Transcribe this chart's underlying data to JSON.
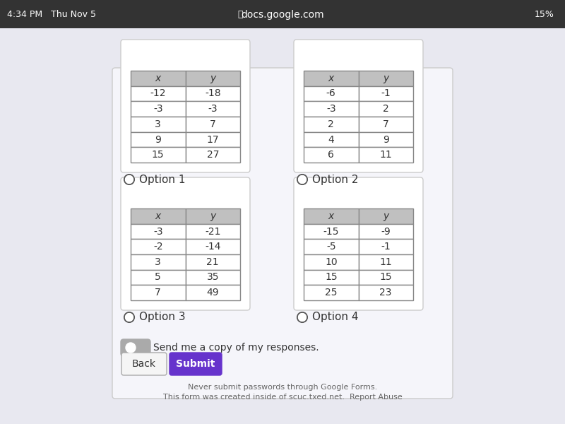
{
  "background_color": "#e8e8f0",
  "page_bg": "#f5f5fa",
  "card_bg": "#ffffff",
  "table_header_bg": "#c0c0c0",
  "table_border": "#888888",
  "option1": {
    "x_vals": [
      "-12",
      "-3",
      "3",
      "9",
      "15"
    ],
    "y_vals": [
      "-18",
      "-3",
      "7",
      "17",
      "27"
    ],
    "label": "Option 1"
  },
  "option2": {
    "x_vals": [
      "-6",
      "-3",
      "2",
      "4",
      "6"
    ],
    "y_vals": [
      "-1",
      "2",
      "7",
      "9",
      "11"
    ],
    "label": "Option 2"
  },
  "option3": {
    "x_vals": [
      "-3",
      "-2",
      "3",
      "5",
      "7"
    ],
    "y_vals": [
      "-21",
      "-14",
      "21",
      "35",
      "49"
    ],
    "label": "Option 3"
  },
  "option4": {
    "x_vals": [
      "-15",
      "-5",
      "10",
      "15",
      "25"
    ],
    "y_vals": [
      "-9",
      "-1",
      "11",
      "15",
      "23"
    ],
    "label": "Option 4"
  },
  "radio_color": "#ffffff",
  "radio_border": "#555555",
  "text_color": "#333333",
  "label_fontsize": 11,
  "cell_fontsize": 10,
  "header_fontsize": 10
}
